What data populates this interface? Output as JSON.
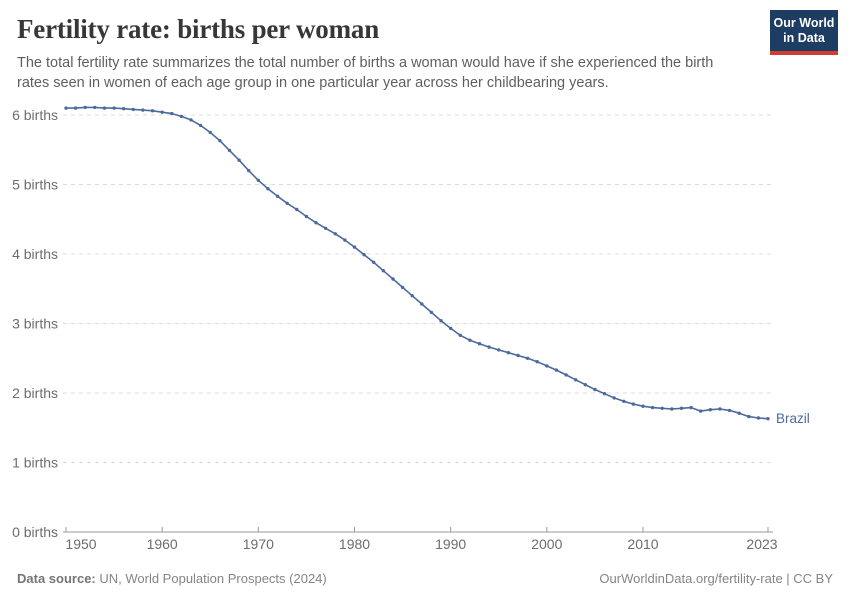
{
  "header": {
    "title": "Fertility rate: births per woman",
    "subtitle": "The total fertility rate summarizes the total number of births a woman would have if she experienced the birth rates seen in women of each age group in one particular year across her childbearing years.",
    "logo": {
      "line1": "Our World",
      "line2": "in Data",
      "bg_color": "#1d3d63",
      "stripe_color": "#d13d33"
    }
  },
  "chart_data": {
    "type": "line",
    "title": "Fertility rate: births per woman",
    "xlabel": "",
    "ylabel": "births",
    "grid": "horizontal-dashed",
    "legend_position": "end-of-line-label",
    "x_range": [
      1950,
      2023
    ],
    "ylim": [
      0,
      6.2
    ],
    "y_ticks": [
      {
        "value": 0,
        "label": "0 births"
      },
      {
        "value": 1,
        "label": "1 births"
      },
      {
        "value": 2,
        "label": "2 births"
      },
      {
        "value": 3,
        "label": "3 births"
      },
      {
        "value": 4,
        "label": "4 births"
      },
      {
        "value": 5,
        "label": "5 births"
      },
      {
        "value": 6,
        "label": "6 births"
      }
    ],
    "x_ticks": [
      {
        "year": 1950,
        "label": "1950"
      },
      {
        "year": 1960,
        "label": "1960"
      },
      {
        "year": 1970,
        "label": "1970"
      },
      {
        "year": 1980,
        "label": "1980"
      },
      {
        "year": 1990,
        "label": "1990"
      },
      {
        "year": 2000,
        "label": "2000"
      },
      {
        "year": 2010,
        "label": "2010"
      },
      {
        "year": 2023,
        "label": "2023"
      }
    ],
    "series": [
      {
        "name": "Brazil",
        "end_label": "Brazil",
        "color": "#4c6a9c",
        "years": [
          1950,
          1951,
          1952,
          1953,
          1954,
          1955,
          1956,
          1957,
          1958,
          1959,
          1960,
          1961,
          1962,
          1963,
          1964,
          1965,
          1966,
          1967,
          1968,
          1969,
          1970,
          1971,
          1972,
          1973,
          1974,
          1975,
          1976,
          1977,
          1978,
          1979,
          1980,
          1981,
          1982,
          1983,
          1984,
          1985,
          1986,
          1987,
          1988,
          1989,
          1990,
          1991,
          1992,
          1993,
          1994,
          1995,
          1996,
          1997,
          1998,
          1999,
          2000,
          2001,
          2002,
          2003,
          2004,
          2005,
          2006,
          2007,
          2008,
          2009,
          2010,
          2011,
          2012,
          2013,
          2014,
          2015,
          2016,
          2017,
          2018,
          2019,
          2020,
          2021,
          2022,
          2023
        ],
        "values": [
          6.1,
          6.1,
          6.11,
          6.11,
          6.1,
          6.1,
          6.09,
          6.08,
          6.07,
          6.06,
          6.04,
          6.02,
          5.98,
          5.93,
          5.85,
          5.75,
          5.63,
          5.49,
          5.35,
          5.2,
          5.06,
          4.94,
          4.83,
          4.73,
          4.64,
          4.54,
          4.45,
          4.37,
          4.29,
          4.2,
          4.1,
          3.99,
          3.88,
          3.76,
          3.64,
          3.52,
          3.4,
          3.28,
          3.16,
          3.04,
          2.93,
          2.83,
          2.76,
          2.71,
          2.66,
          2.62,
          2.58,
          2.54,
          2.5,
          2.45,
          2.39,
          2.33,
          2.26,
          2.19,
          2.12,
          2.05,
          1.99,
          1.93,
          1.88,
          1.84,
          1.81,
          1.79,
          1.78,
          1.77,
          1.78,
          1.79,
          1.74,
          1.76,
          1.77,
          1.75,
          1.71,
          1.66,
          1.64,
          1.63
        ]
      }
    ],
    "axis_color": "#999999",
    "gridline_color": "#dcdcdc",
    "tick_label_color": "#6d6d6d"
  },
  "footer": {
    "datasource_label": "Data source:",
    "datasource_value": " UN, World Population Prospects (2024)",
    "citation": "OurWorldinData.org/fertility-rate | CC BY"
  }
}
